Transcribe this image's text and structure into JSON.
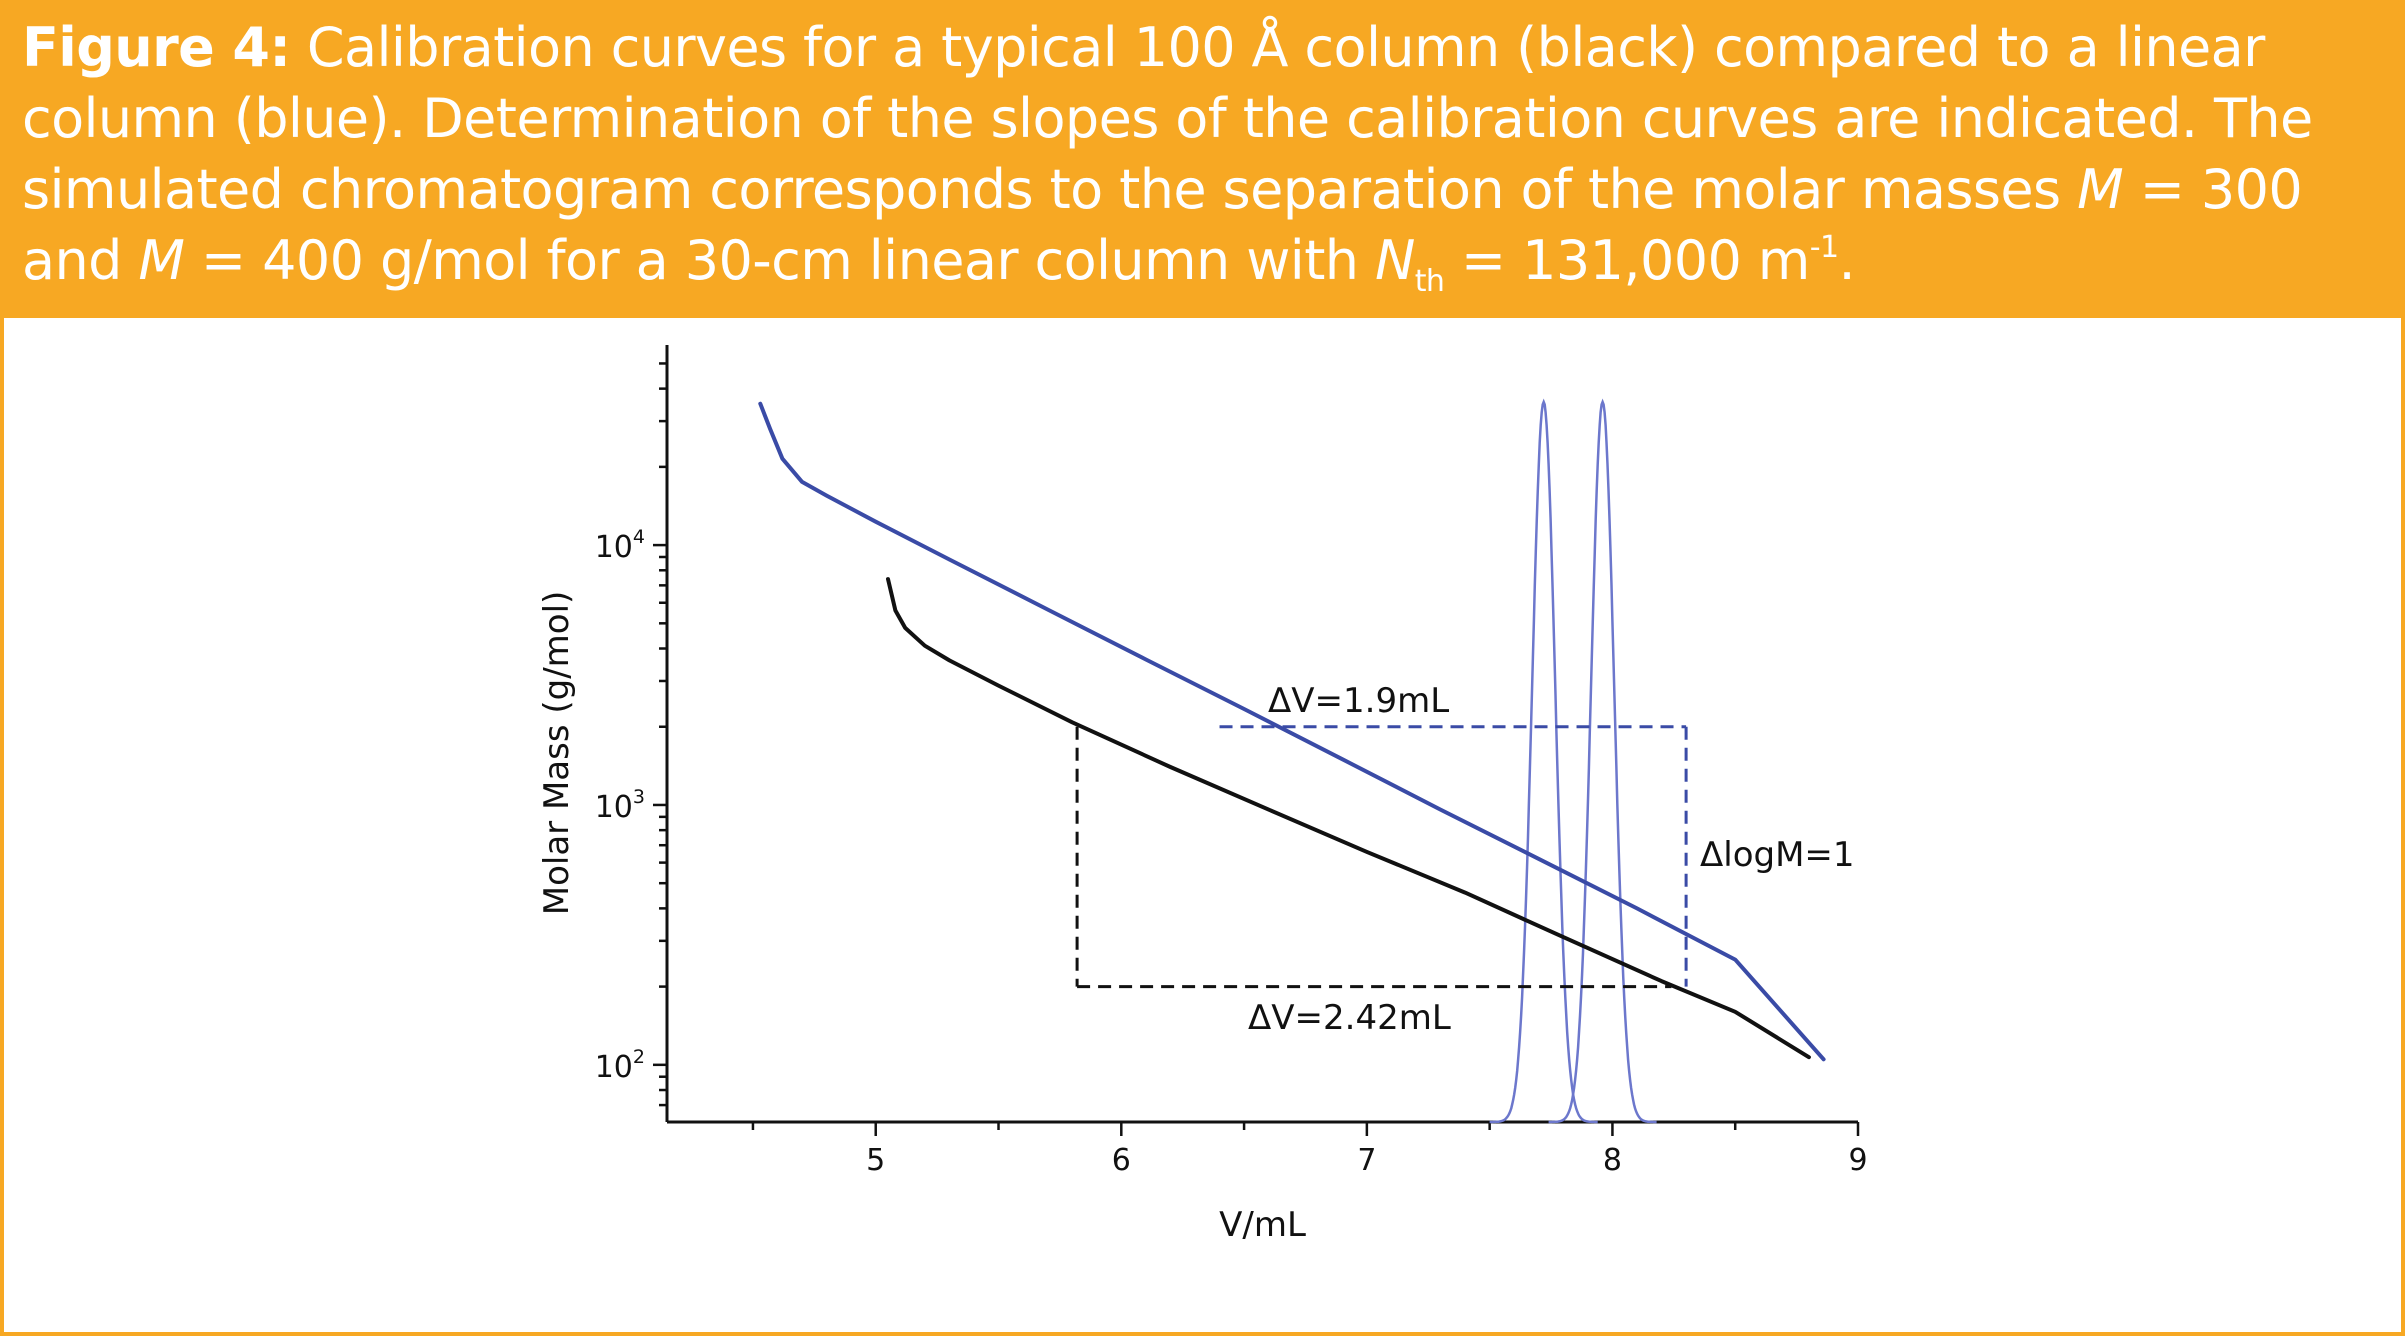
{
  "caption": {
    "label": "Figure 4:",
    "part1": " Calibration curves for a typical 100 Å column (black) compared to a linear column (blue). Determination of the slopes of the calibration curves are indicated. The simulated chromatogram corresponds to the separation of  the molar masses ",
    "m1_symbol": "M",
    "part2": " = 300 and ",
    "m2_symbol": "M",
    "part3": " = 400 g/mol for a 30-cm linear column with ",
    "n_symbol": "N",
    "n_sub": "th",
    "part4": " = 131,000 m",
    "unit_sup": "-1",
    "part5": "."
  },
  "colors": {
    "banner": "#f7a823",
    "column_100A": "#111111",
    "linear_column": "#3a4ba6",
    "chromatogram": "#6c77cc"
  },
  "chart_data": {
    "type": "line",
    "xlabel": "V/mL",
    "ylabel": "Molar Mass (g/mol)",
    "xlim": [
      4.15,
      9.0
    ],
    "ylim_log10": [
      1.78,
      4.77
    ],
    "yscale": "log",
    "x_ticks": [
      "5",
      "6",
      "7",
      "8",
      "9"
    ],
    "y_ticks": [
      {
        "base": "10",
        "exp": "2",
        "log10": 2
      },
      {
        "base": "10",
        "exp": "3",
        "log10": 3
      },
      {
        "base": "10",
        "exp": "4",
        "log10": 4
      }
    ],
    "series": [
      {
        "name": "Typical 100 Å column (black)",
        "x": [
          5.05,
          5.08,
          5.12,
          5.2,
          5.3,
          5.5,
          5.8,
          6.2,
          6.6,
          7.0,
          7.4,
          7.8,
          8.2,
          8.5,
          8.8
        ],
        "y": [
          7400,
          5600,
          4800,
          4100,
          3600,
          2880,
          2080,
          1400,
          960,
          660,
          460,
          310,
          210,
          160,
          107
        ]
      },
      {
        "name": "Linear column (blue)",
        "x": [
          4.53,
          4.57,
          4.62,
          4.7,
          4.8,
          5.0,
          5.3,
          5.7,
          6.1,
          6.5,
          6.9,
          7.3,
          7.7,
          8.1,
          8.5,
          8.86
        ],
        "y": [
          35000,
          28000,
          21500,
          17500,
          15500,
          12300,
          8800,
          5650,
          3630,
          2340,
          1500,
          960,
          620,
          400,
          254,
          105
        ]
      }
    ],
    "chromatogram": {
      "name": "Simulated chromatogram (M = 300 and M = 400 g/mol)",
      "peaks_at_V": [
        7.72,
        7.96
      ]
    },
    "annotations": [
      {
        "text": "ΔV=1.9mL",
        "segment_V": [
          6.4,
          8.3
        ],
        "at_M": 2000
      },
      {
        "text": "ΔlogM=1",
        "at_V": 8.3,
        "segment_M": [
          200,
          2000
        ]
      },
      {
        "text": "ΔV=2.42mL",
        "segment_V": [
          5.82,
          8.24
        ],
        "at_M": 200
      }
    ]
  }
}
